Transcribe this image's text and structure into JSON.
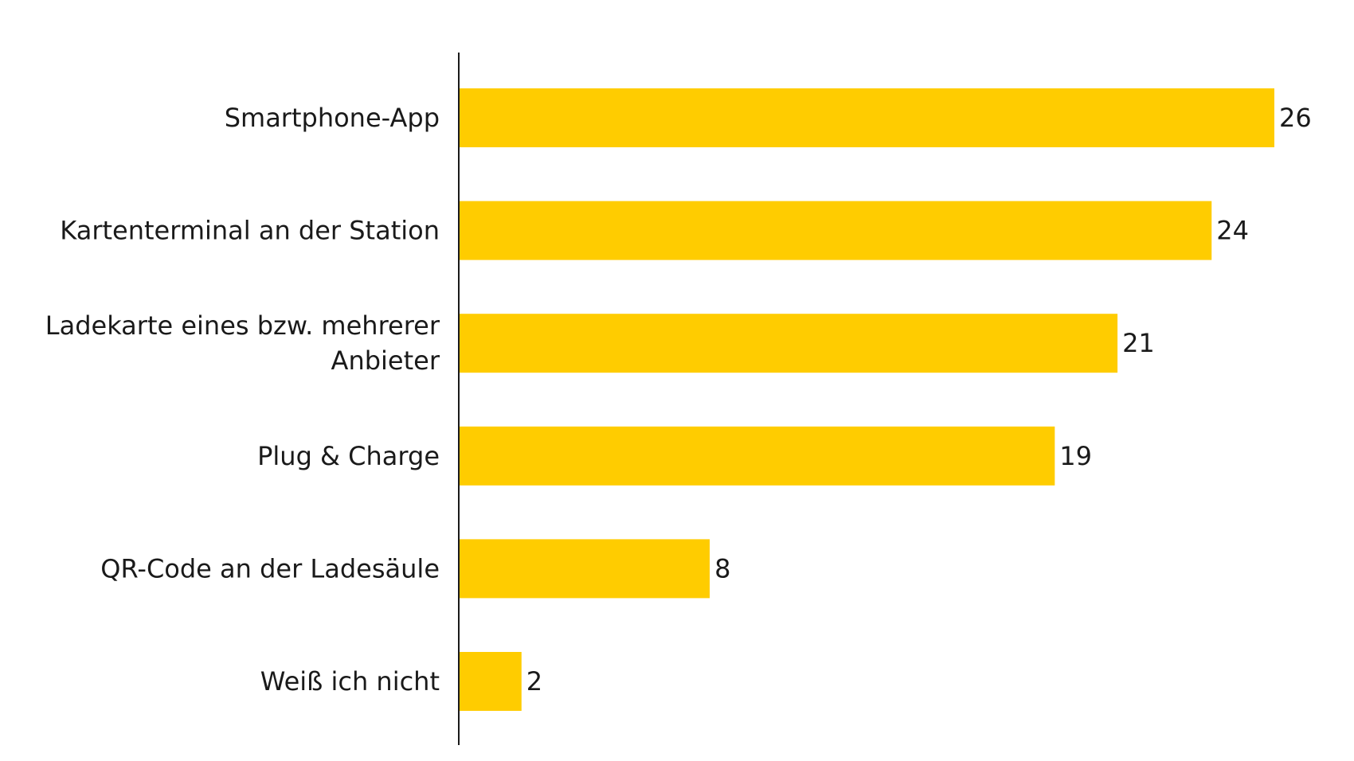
{
  "chart_data": {
    "type": "bar",
    "orientation": "horizontal",
    "categories": [
      "Smartphone-App",
      "Kartenterminal an der Station",
      "Ladekarte eines bzw. mehrerer Anbieter",
      "Plug & Charge",
      "QR-Code an der Ladesäule",
      "Weiß ich nicht"
    ],
    "category_lines": [
      [
        "Smartphone-App"
      ],
      [
        "Kartenterminal an der Station"
      ],
      [
        "Ladekarte eines bzw. mehrerer",
        "Anbieter"
      ],
      [
        "Plug & Charge"
      ],
      [
        "QR-Code an der Ladesäule"
      ],
      [
        "Weiß ich nicht"
      ]
    ],
    "values": [
      26,
      24,
      21,
      19,
      8,
      2
    ],
    "value_labels": [
      "26",
      "24",
      "21",
      "19",
      "8",
      "2"
    ],
    "title": "",
    "xlabel": "",
    "ylabel": "",
    "xlim": [
      0,
      26
    ],
    "grid": false,
    "legend": "none",
    "bar_color": "#FFCC00",
    "axis_color": "#1a1a1a"
  }
}
